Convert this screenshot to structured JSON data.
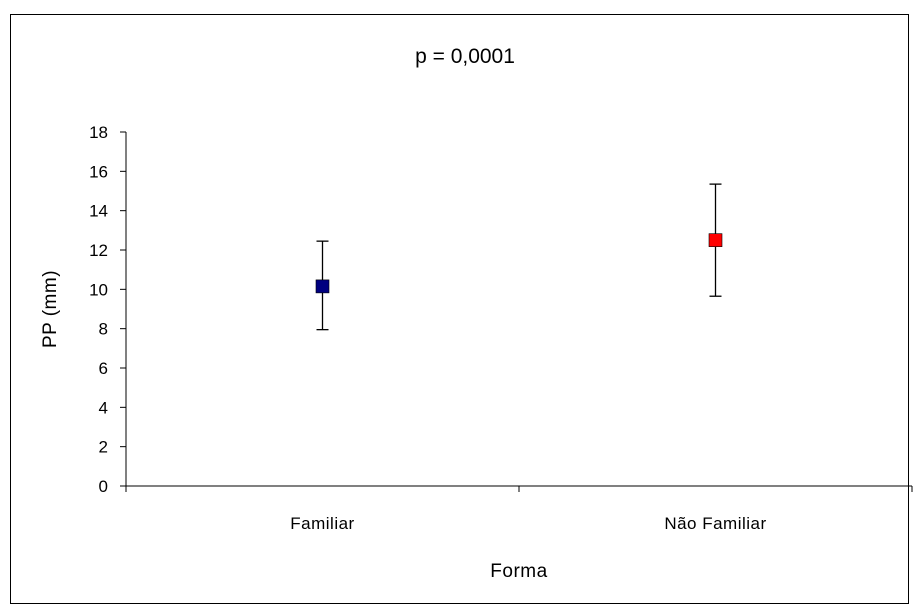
{
  "chart_data": {
    "type": "scatter",
    "title": "p = 0,0001",
    "xlabel": "Forma",
    "ylabel": "PP (mm)",
    "ylim": [
      0,
      18
    ],
    "yticks": [
      "0",
      "2",
      "4",
      "6",
      "8",
      "10",
      "12",
      "14",
      "16",
      "18"
    ],
    "categories": [
      "Familiar",
      "Não Familiar"
    ],
    "grid": false,
    "legend": "none",
    "series": [
      {
        "points": [
          {
            "category": "Familiar",
            "y": 10.15,
            "error_low": 7.95,
            "error_high": 12.45,
            "color": "#000080"
          },
          {
            "category": "Não Familiar",
            "y": 12.5,
            "error_low": 9.65,
            "error_high": 15.35,
            "color": "#ff0000"
          }
        ]
      }
    ]
  }
}
